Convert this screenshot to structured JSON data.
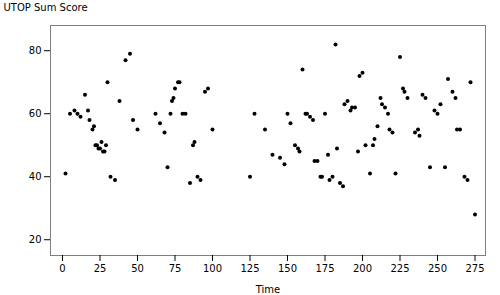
{
  "chart_data": {
    "type": "scatter",
    "x": [
      2,
      5,
      8,
      10,
      12,
      15,
      17,
      18,
      20,
      21,
      22,
      23,
      24,
      25,
      26,
      27,
      28,
      29,
      30,
      32,
      35,
      38,
      42,
      45,
      47,
      50,
      62,
      65,
      68,
      70,
      72,
      73,
      74,
      75,
      77,
      78,
      80,
      82,
      85,
      87,
      88,
      90,
      92,
      95,
      97,
      100,
      125,
      128,
      135,
      140,
      145,
      148,
      150,
      152,
      155,
      157,
      158,
      160,
      162,
      163,
      165,
      167,
      168,
      170,
      172,
      173,
      175,
      177,
      178,
      180,
      182,
      183,
      185,
      187,
      188,
      190,
      192,
      193,
      195,
      197,
      198,
      200,
      202,
      205,
      207,
      208,
      210,
      212,
      213,
      215,
      217,
      218,
      220,
      222,
      225,
      227,
      228,
      230,
      235,
      237,
      238,
      240,
      242,
      245,
      248,
      250,
      252,
      255,
      257,
      260,
      262,
      263,
      265,
      268,
      270,
      272,
      275
    ],
    "y": [
      41,
      60,
      61,
      60,
      59,
      66,
      61,
      58,
      55,
      56,
      50,
      50,
      49,
      49,
      51,
      48,
      48,
      50,
      70,
      40,
      39,
      64,
      77,
      79,
      58,
      55,
      60,
      57,
      54,
      43,
      60,
      64,
      65,
      68,
      70,
      70,
      60,
      60,
      38,
      50,
      51,
      40,
      39,
      67,
      68,
      55,
      40,
      60,
      55,
      47,
      46,
      44,
      60,
      57,
      50,
      49,
      48,
      74,
      60,
      60,
      59,
      58,
      45,
      45,
      40,
      40,
      60,
      47,
      39,
      40,
      82,
      49,
      38,
      37,
      63,
      64,
      61,
      62,
      62,
      48,
      72,
      73,
      50,
      41,
      50,
      52,
      56,
      65,
      63,
      62,
      60,
      55,
      54,
      41,
      78,
      68,
      67,
      65,
      54,
      55,
      53,
      66,
      65,
      43,
      61,
      60,
      63,
      43,
      71,
      67,
      65,
      55,
      55,
      40,
      39,
      70,
      28
    ],
    "xlabel": "Time",
    "ylabel": "UTOP Sum Score",
    "xlim": [
      -8,
      282
    ],
    "ylim": [
      15,
      88
    ],
    "xticks": [
      0,
      25,
      50,
      75,
      100,
      125,
      150,
      175,
      200,
      225,
      250,
      275
    ],
    "yticks": [
      20,
      40,
      60,
      80
    ],
    "color": "black",
    "grid": false
  }
}
